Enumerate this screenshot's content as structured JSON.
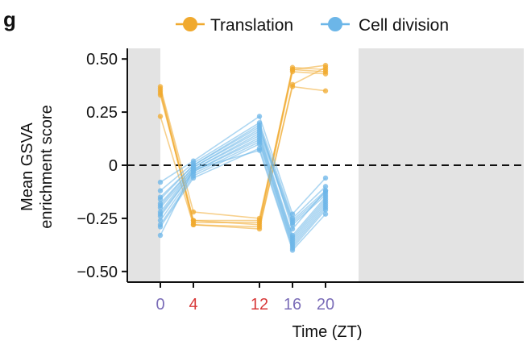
{
  "chart_data": {
    "type": "line",
    "panel_label": "g",
    "xlabel": "Time (ZT)",
    "ylabel": [
      "Mean GSVA",
      "enrichment score"
    ],
    "x": [
      0,
      4,
      12,
      16,
      20
    ],
    "x_tick_labels": [
      "0",
      "4",
      "12",
      "16",
      "20"
    ],
    "x_tick_colors": [
      "#7b6db8",
      "#d83a3a",
      "#d83a3a",
      "#7b6db8",
      "#7b6db8"
    ],
    "xlim": [
      -4,
      44
    ],
    "ylim": [
      -0.55,
      0.55
    ],
    "y_ticks": [
      0.5,
      0.25,
      0,
      -0.25,
      -0.5
    ],
    "y_tick_labels": [
      "0.50",
      "0.25",
      "0",
      "−0.25",
      "−0.50"
    ],
    "shaded_regions": [
      [
        -4,
        0
      ],
      [
        24,
        44
      ]
    ],
    "shade_color": "#e3e3e3",
    "zero_line": true,
    "legend_position": "top",
    "series_groups": [
      {
        "name": "Translation",
        "color": "#f0a92e",
        "lines": [
          [
            0.37,
            -0.22,
            -0.25,
            0.45,
            0.47
          ],
          [
            0.36,
            -0.26,
            -0.26,
            0.46,
            0.45
          ],
          [
            0.34,
            -0.27,
            -0.27,
            0.45,
            0.44
          ],
          [
            0.33,
            -0.26,
            -0.28,
            0.44,
            0.43
          ],
          [
            0.23,
            -0.28,
            -0.29,
            0.37,
            0.35
          ],
          [
            0.35,
            -0.28,
            -0.3,
            0.38,
            0.46
          ]
        ]
      },
      {
        "name": "Cell division",
        "color": "#6cb6e8",
        "lines": [
          [
            -0.08,
            0.02,
            0.23,
            -0.23,
            -0.06
          ],
          [
            -0.12,
            0.01,
            0.2,
            -0.25,
            -0.1
          ],
          [
            -0.16,
            0.0,
            0.18,
            -0.26,
            -0.12
          ],
          [
            -0.18,
            -0.01,
            0.17,
            -0.27,
            -0.13
          ],
          [
            -0.19,
            -0.01,
            0.16,
            -0.28,
            -0.14
          ],
          [
            -0.2,
            -0.02,
            0.15,
            -0.33,
            -0.15
          ],
          [
            -0.22,
            -0.02,
            0.14,
            -0.34,
            -0.16
          ],
          [
            -0.23,
            -0.03,
            0.13,
            -0.35,
            -0.17
          ],
          [
            -0.24,
            -0.03,
            0.12,
            -0.36,
            -0.18
          ],
          [
            -0.26,
            -0.04,
            0.11,
            -0.37,
            -0.19
          ],
          [
            -0.28,
            -0.05,
            0.1,
            -0.38,
            -0.2
          ],
          [
            -0.29,
            -0.06,
            0.08,
            -0.39,
            -0.21
          ],
          [
            -0.33,
            -0.02,
            0.07,
            -0.4,
            -0.23
          ],
          [
            -0.15,
            0.0,
            0.19,
            -0.3,
            -0.12
          ]
        ]
      }
    ]
  }
}
